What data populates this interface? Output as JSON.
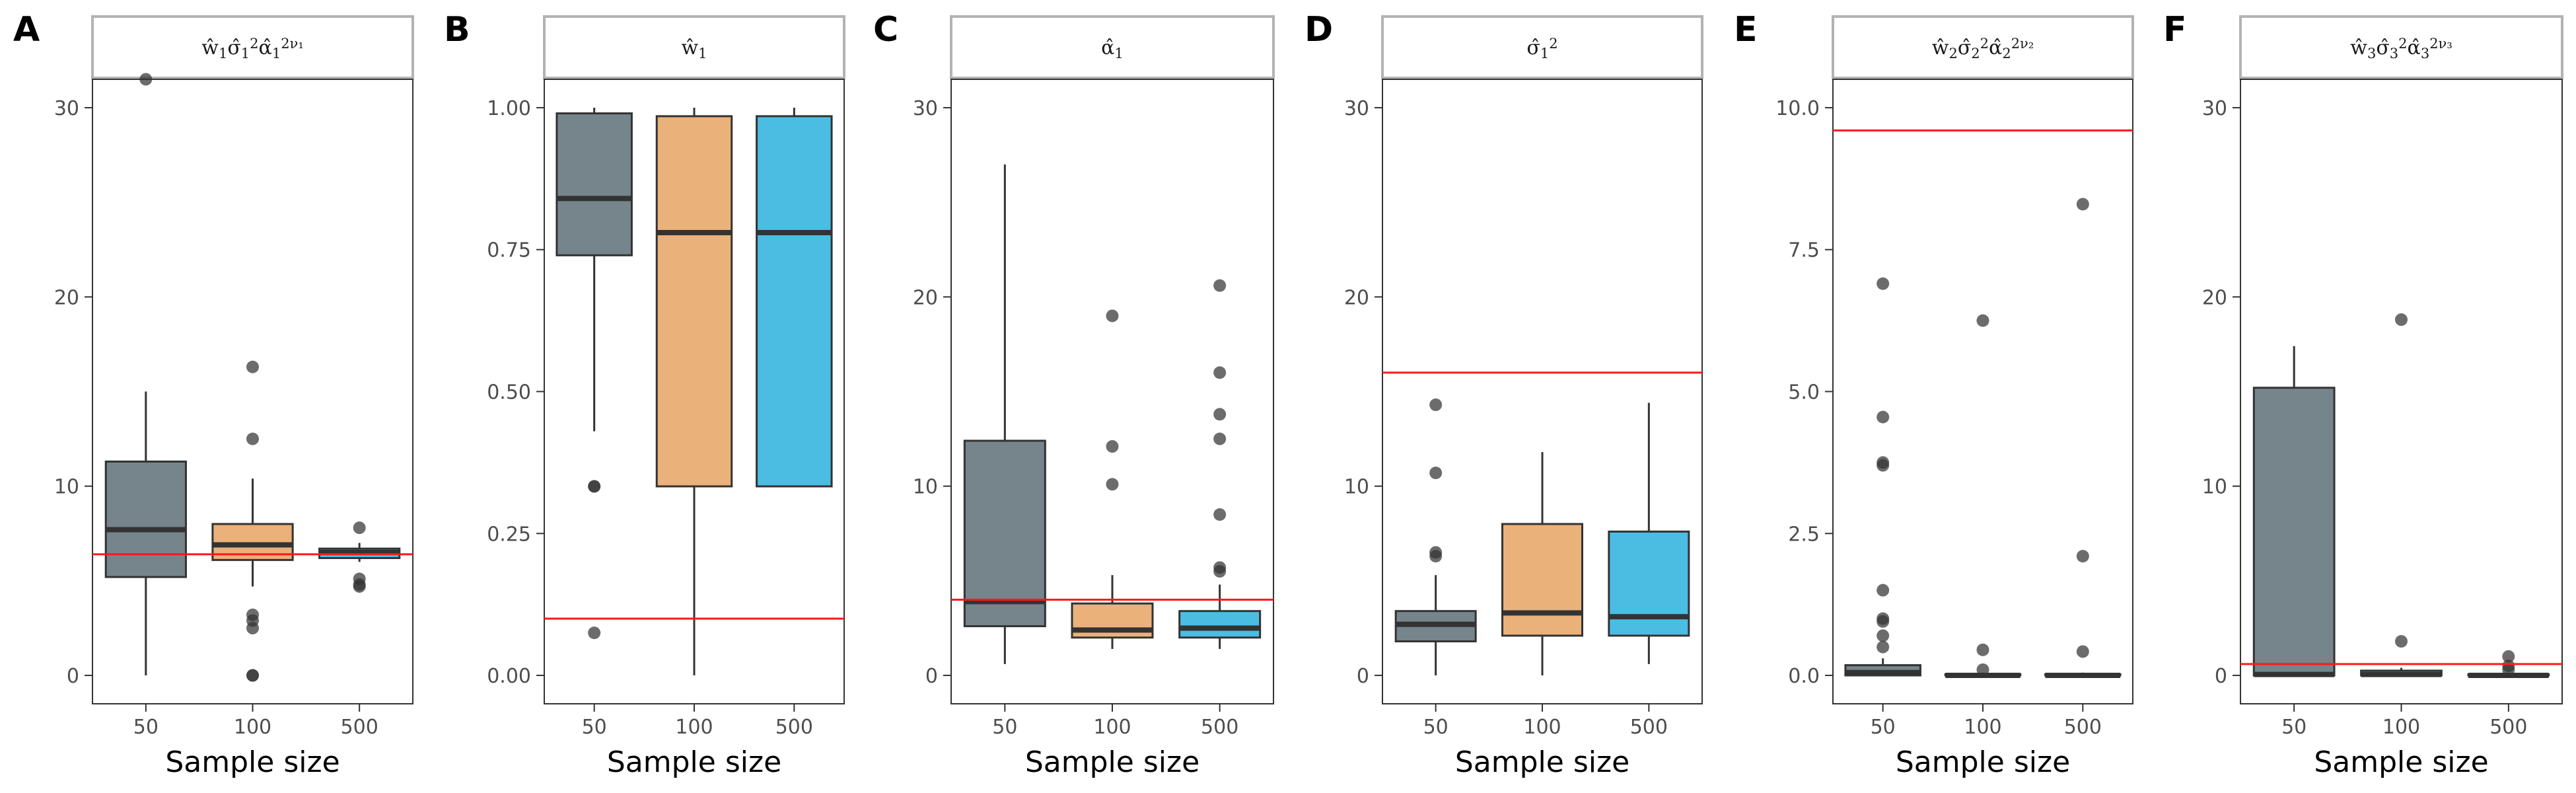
{
  "chart_data": [
    {
      "type": "box",
      "panel_label": "A",
      "strip_title": "ŵ₁σ̂₁²α̂₁^(2ν₁)",
      "xlabel": "Sample size",
      "categories": [
        "50",
        "100",
        "500"
      ],
      "ylim": [
        -1.5,
        31.5
      ],
      "y_ticks": [
        0,
        10,
        20,
        30
      ],
      "y_tick_labels": [
        "0",
        "10",
        "20",
        "30"
      ],
      "reference_line": 6.4,
      "series": [
        {
          "name": "50",
          "color": "#75858B",
          "q1": 5.2,
          "median": 7.7,
          "q3": 11.3,
          "whisker_low": 0.0,
          "whisker_high": 15.0,
          "outliers": [
            31.5
          ]
        },
        {
          "name": "100",
          "color": "#EAB17B",
          "q1": 6.1,
          "median": 6.9,
          "q3": 8.0,
          "whisker_low": 4.7,
          "whisker_high": 10.4,
          "outliers": [
            16.3,
            12.5,
            3.2,
            2.9,
            2.5,
            0.0,
            0.0
          ]
        },
        {
          "name": "500",
          "color": "#4BBDE2",
          "q1": 6.2,
          "median": 6.5,
          "q3": 6.7,
          "whisker_low": 6.0,
          "whisker_high": 7.0,
          "outliers": [
            7.8,
            5.1,
            4.8,
            4.7
          ]
        }
      ]
    },
    {
      "type": "box",
      "panel_label": "B",
      "strip_title": "ŵ₁",
      "xlabel": "Sample size",
      "categories": [
        "50",
        "100",
        "500"
      ],
      "ylim": [
        -0.05,
        1.05
      ],
      "y_ticks": [
        0,
        0.25,
        0.5,
        0.75,
        1.0
      ],
      "y_tick_labels": [
        "0.00",
        "0.25",
        "0.50",
        "0.75",
        "1.00"
      ],
      "reference_line": 0.1,
      "series": [
        {
          "name": "50",
          "color": "#75858B",
          "q1": 0.74,
          "median": 0.84,
          "q3": 0.99,
          "whisker_low": 0.43,
          "whisker_high": 1.0,
          "outliers": [
            0.333,
            0.333,
            0.075
          ]
        },
        {
          "name": "100",
          "color": "#EAB17B",
          "q1": 0.333,
          "median": 0.78,
          "q3": 0.985,
          "whisker_low": 0.0,
          "whisker_high": 1.0,
          "outliers": []
        },
        {
          "name": "500",
          "color": "#4BBDE2",
          "q1": 0.333,
          "median": 0.78,
          "q3": 0.985,
          "whisker_low": 0.333,
          "whisker_high": 1.0,
          "outliers": []
        }
      ]
    },
    {
      "type": "box",
      "panel_label": "C",
      "strip_title": "α̂₁",
      "xlabel": "Sample size",
      "categories": [
        "50",
        "100",
        "500"
      ],
      "ylim": [
        -1.5,
        31.5
      ],
      "y_ticks": [
        0,
        10,
        20,
        30
      ],
      "y_tick_labels": [
        "0",
        "10",
        "20",
        "30"
      ],
      "reference_line": 4.0,
      "series": [
        {
          "name": "50",
          "color": "#75858B",
          "q1": 2.6,
          "median": 3.9,
          "q3": 12.4,
          "whisker_low": 0.6,
          "whisker_high": 27.0,
          "outliers": []
        },
        {
          "name": "100",
          "color": "#EAB17B",
          "q1": 2.0,
          "median": 2.4,
          "q3": 3.8,
          "whisker_low": 1.4,
          "whisker_high": 5.3,
          "outliers": [
            19.0,
            12.1,
            10.1
          ]
        },
        {
          "name": "500",
          "color": "#4BBDE2",
          "q1": 2.0,
          "median": 2.5,
          "q3": 3.4,
          "whisker_low": 1.4,
          "whisker_high": 4.8,
          "outliers": [
            20.6,
            16.0,
            13.8,
            12.5,
            8.5,
            5.7,
            5.5
          ]
        }
      ]
    },
    {
      "type": "box",
      "panel_label": "D",
      "strip_title": "σ̂₁²",
      "xlabel": "Sample size",
      "categories": [
        "50",
        "100",
        "500"
      ],
      "ylim": [
        -1.5,
        31.5
      ],
      "y_ticks": [
        0,
        10,
        20,
        30
      ],
      "y_tick_labels": [
        "0",
        "10",
        "20",
        "30"
      ],
      "reference_line": 16.0,
      "series": [
        {
          "name": "50",
          "color": "#75858B",
          "q1": 1.8,
          "median": 2.7,
          "q3": 3.4,
          "whisker_low": 0.0,
          "whisker_high": 5.3,
          "outliers": [
            14.3,
            10.7,
            6.5,
            6.3
          ]
        },
        {
          "name": "100",
          "color": "#EAB17B",
          "q1": 2.1,
          "median": 3.3,
          "q3": 8.0,
          "whisker_low": 0.0,
          "whisker_high": 11.8,
          "outliers": []
        },
        {
          "name": "500",
          "color": "#4BBDE2",
          "q1": 2.1,
          "median": 3.1,
          "q3": 7.6,
          "whisker_low": 0.6,
          "whisker_high": 14.4,
          "outliers": []
        }
      ]
    },
    {
      "type": "box",
      "panel_label": "E",
      "strip_title": "ŵ₂σ̂₂²α̂₂^(2ν₂)",
      "xlabel": "Sample size",
      "categories": [
        "50",
        "100",
        "500"
      ],
      "ylim": [
        -0.5,
        10.5
      ],
      "y_ticks": [
        0,
        2.5,
        5,
        7.5,
        10
      ],
      "y_tick_labels": [
        "0.0",
        "2.5",
        "5.0",
        "7.5",
        "10.0"
      ],
      "reference_line": 9.6,
      "series": [
        {
          "name": "50",
          "color": "#75858B",
          "q1": 0.0,
          "median": 0.05,
          "q3": 0.18,
          "whisker_low": 0.0,
          "whisker_high": 0.3,
          "outliers": [
            6.9,
            4.55,
            3.75,
            3.7,
            1.5,
            1.0,
            0.95,
            0.7,
            0.5
          ]
        },
        {
          "name": "100",
          "color": "#EAB17B",
          "q1": 0.0,
          "median": 0.0,
          "q3": 0.02,
          "whisker_low": 0.0,
          "whisker_high": 0.05,
          "outliers": [
            6.25,
            0.45,
            0.1
          ]
        },
        {
          "name": "500",
          "color": "#4BBDE2",
          "q1": 0.0,
          "median": 0.0,
          "q3": 0.02,
          "whisker_low": 0.0,
          "whisker_high": 0.05,
          "outliers": [
            8.3,
            2.1,
            0.42
          ]
        }
      ]
    },
    {
      "type": "box",
      "panel_label": "F",
      "strip_title": "ŵ₃σ̂₃²α̂₃^(2ν₃)",
      "xlabel": "Sample size",
      "categories": [
        "50",
        "100",
        "500"
      ],
      "ylim": [
        -1.5,
        31.5
      ],
      "y_ticks": [
        0,
        10,
        20,
        30
      ],
      "y_tick_labels": [
        "0",
        "10",
        "20",
        "30"
      ],
      "reference_line": 0.6,
      "series": [
        {
          "name": "50",
          "color": "#75858B",
          "q1": 0.0,
          "median": 0.05,
          "q3": 15.2,
          "whisker_low": 0.0,
          "whisker_high": 17.4,
          "outliers": []
        },
        {
          "name": "100",
          "color": "#EAB17B",
          "q1": 0.0,
          "median": 0.05,
          "q3": 0.25,
          "whisker_low": 0.0,
          "whisker_high": 0.4,
          "outliers": [
            18.8,
            1.8
          ]
        },
        {
          "name": "500",
          "color": "#4BBDE2",
          "q1": 0.0,
          "median": 0.0,
          "q3": 0.05,
          "whisker_low": 0.0,
          "whisker_high": 0.1,
          "outliers": [
            1.0,
            0.5,
            0.3
          ]
        }
      ]
    }
  ]
}
